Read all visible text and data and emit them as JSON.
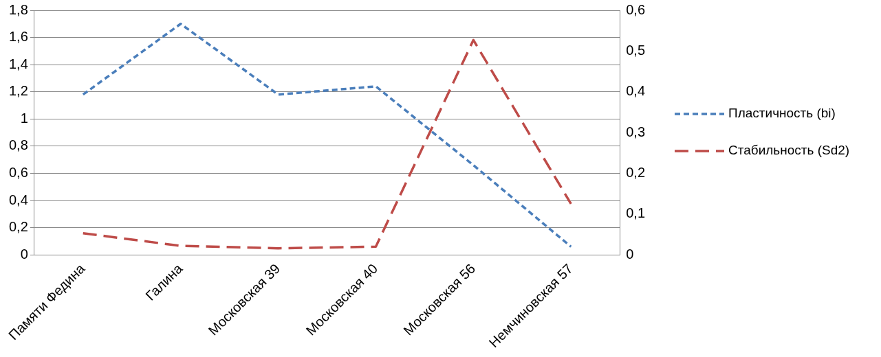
{
  "chart_data": {
    "type": "line",
    "categories": [
      "Памяти Федина",
      "Галина",
      "Московская 39",
      "Московская 40",
      "Московская 56",
      "Немчиновская 57"
    ],
    "series": [
      {
        "name": "Пластичность (bi)",
        "color": "#4a7ebb",
        "values": [
          1.18,
          1.7,
          1.18,
          1.24,
          0.66,
          0.06
        ],
        "line_style": "dotted"
      },
      {
        "name": "Стабильность (Sd2)",
        "color": "#be4b48",
        "values": [
          0.053,
          0.022,
          0.016,
          0.02,
          0.527,
          0.125
        ],
        "axis": "y2",
        "line_style": "dashed"
      }
    ],
    "ylim": [
      0,
      1.8
    ],
    "yticks": [
      0,
      {
        "value": 0.2,
        "label": "0,2"
      },
      {
        "value": 0.4,
        "label": "0,4"
      },
      {
        "value": 0.6,
        "label": "0,6"
      },
      {
        "value": 0.8,
        "label": "0,8"
      },
      1,
      {
        "value": 1.2,
        "label": "1,2"
      },
      {
        "value": 1.4,
        "label": "1,4"
      },
      {
        "value": 1.6,
        "label": "1,6"
      },
      {
        "value": 1.8,
        "label": "1,8"
      }
    ],
    "y2lim": [
      0,
      0.6
    ],
    "y2ticks": [
      0,
      {
        "value": 0.1,
        "label": "0,1"
      },
      {
        "value": 0.2,
        "label": "0,2"
      },
      {
        "value": 0.3,
        "label": "0,3"
      },
      {
        "value": 0.4,
        "label": "0,4"
      },
      {
        "value": 0.5,
        "label": "0,5"
      },
      {
        "value": 0.6,
        "label": "0,6"
      }
    ],
    "grid": "y",
    "legend": "right",
    "marker": "none"
  }
}
